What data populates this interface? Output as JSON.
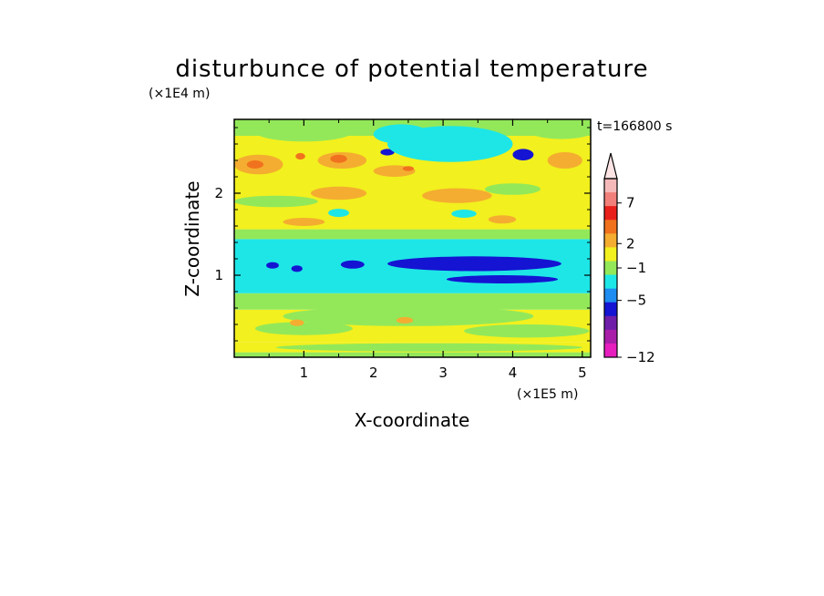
{
  "chart_data": {
    "type": "heatmap",
    "title": "disturbunce of potential temperature",
    "time_label": "t=166800 s",
    "xlabel": "X-coordinate",
    "ylabel": "Z-coordinate",
    "x_unit": "(×1E5 m)",
    "y_unit": "(×1E4 m)",
    "xlim": [
      0,
      5.12
    ],
    "ylim": [
      0,
      2.9
    ],
    "x_ticks": [
      {
        "value": 1,
        "label": "1"
      },
      {
        "value": 2,
        "label": "2"
      },
      {
        "value": 3,
        "label": "3"
      },
      {
        "value": 4,
        "label": "4"
      },
      {
        "value": 5,
        "label": "5"
      }
    ],
    "y_ticks": [
      {
        "value": 1,
        "label": "1"
      },
      {
        "value": 2,
        "label": "2"
      }
    ],
    "colorbar": {
      "min": -12,
      "max": 10,
      "extend": "max",
      "labeled_levels": [
        {
          "value": 7,
          "label": "7"
        },
        {
          "value": 2,
          "label": "2"
        },
        {
          "value": -1,
          "label": "−1"
        },
        {
          "value": -5,
          "label": "−5"
        },
        {
          "value": -12,
          "label": "−12"
        }
      ],
      "colors_top_to_bottom": [
        "#f6b9b9",
        "#f2807a",
        "#e8201c",
        "#f0721e",
        "#f4ad30",
        "#f2f01e",
        "#93e85a",
        "#1ee6e6",
        "#1e8cf0",
        "#1414d2",
        "#6e1ea8",
        "#a81ea8",
        "#e61ebe"
      ]
    },
    "bands": [
      {
        "z": [
          0.0,
          0.06
        ],
        "class": "green"
      },
      {
        "z": [
          0.06,
          0.18
        ],
        "class": "yellow"
      },
      {
        "z": [
          0.18,
          0.58
        ],
        "class": "yellow"
      },
      {
        "z": [
          0.58,
          0.78
        ],
        "class": "green"
      },
      {
        "z": [
          0.78,
          1.44
        ],
        "class": "cyan"
      },
      {
        "z": [
          1.44,
          1.56
        ],
        "class": "green"
      },
      {
        "z": [
          1.56,
          2.7
        ],
        "class": "yellow"
      },
      {
        "z": [
          2.7,
          2.9
        ],
        "class": "green"
      }
    ],
    "features": [
      {
        "class": "blue",
        "x": 3.45,
        "z": 1.14,
        "rx": 1.25,
        "rz": 0.09
      },
      {
        "class": "blue",
        "x": 3.85,
        "z": 0.95,
        "rx": 0.8,
        "rz": 0.05
      },
      {
        "class": "blue",
        "x": 1.7,
        "z": 1.13,
        "rx": 0.17,
        "rz": 0.05
      },
      {
        "class": "blue",
        "x": 0.55,
        "z": 1.12,
        "rx": 0.09,
        "rz": 0.04
      },
      {
        "class": "blue",
        "x": 0.9,
        "z": 1.08,
        "rx": 0.08,
        "rz": 0.04
      },
      {
        "class": "blue",
        "x": 3.4,
        "z": 2.55,
        "rx": 0.22,
        "rz": 0.1
      },
      {
        "class": "blue",
        "x": 2.2,
        "z": 2.5,
        "rx": 0.1,
        "rz": 0.04
      },
      {
        "class": "blue",
        "x": 4.15,
        "z": 2.47,
        "rx": 0.15,
        "rz": 0.07
      },
      {
        "class": "cyan",
        "x": 3.1,
        "z": 2.6,
        "rx": 0.9,
        "rz": 0.22
      },
      {
        "class": "cyan",
        "x": 2.4,
        "z": 2.72,
        "rx": 0.4,
        "rz": 0.12
      },
      {
        "class": "cyan",
        "x": 1.5,
        "z": 1.76,
        "rx": 0.15,
        "rz": 0.05
      },
      {
        "class": "cyan",
        "x": 3.3,
        "z": 1.75,
        "rx": 0.18,
        "rz": 0.05
      },
      {
        "class": "green",
        "x": 0.6,
        "z": 1.9,
        "rx": 0.6,
        "rz": 0.07
      },
      {
        "class": "green",
        "x": 4.0,
        "z": 2.05,
        "rx": 0.4,
        "rz": 0.07
      },
      {
        "class": "green",
        "x": 1.0,
        "z": 2.75,
        "rx": 0.7,
        "rz": 0.12
      },
      {
        "class": "green",
        "x": 4.7,
        "z": 2.78,
        "rx": 0.5,
        "rz": 0.12
      },
      {
        "class": "green",
        "x": 2.5,
        "z": 0.5,
        "rx": 1.8,
        "rz": 0.12
      },
      {
        "class": "green",
        "x": 1.0,
        "z": 0.35,
        "rx": 0.7,
        "rz": 0.08
      },
      {
        "class": "green",
        "x": 4.2,
        "z": 0.32,
        "rx": 0.9,
        "rz": 0.08
      },
      {
        "class": "green",
        "x": 2.8,
        "z": 0.12,
        "rx": 2.2,
        "rz": 0.05
      },
      {
        "class": "orange",
        "x": 0.35,
        "z": 2.35,
        "rx": 0.35,
        "rz": 0.12
      },
      {
        "class": "orange",
        "x": 1.55,
        "z": 2.4,
        "rx": 0.35,
        "rz": 0.1
      },
      {
        "class": "orange",
        "x": 2.3,
        "z": 2.27,
        "rx": 0.3,
        "rz": 0.07
      },
      {
        "class": "orange",
        "x": 4.75,
        "z": 2.4,
        "rx": 0.25,
        "rz": 0.1
      },
      {
        "class": "orange",
        "x": 3.2,
        "z": 1.97,
        "rx": 0.5,
        "rz": 0.09
      },
      {
        "class": "orange",
        "x": 1.5,
        "z": 2.0,
        "rx": 0.4,
        "rz": 0.08
      },
      {
        "class": "orange",
        "x": 3.85,
        "z": 1.68,
        "rx": 0.2,
        "rz": 0.05
      },
      {
        "class": "orange",
        "x": 1.0,
        "z": 1.65,
        "rx": 0.3,
        "rz": 0.05
      },
      {
        "class": "orange",
        "x": 0.9,
        "z": 0.42,
        "rx": 0.1,
        "rz": 0.04
      },
      {
        "class": "orange",
        "x": 2.45,
        "z": 0.45,
        "rx": 0.12,
        "rz": 0.04
      },
      {
        "class": "orangered",
        "x": 0.3,
        "z": 2.35,
        "rx": 0.12,
        "rz": 0.05
      },
      {
        "class": "orangered",
        "x": 1.5,
        "z": 2.42,
        "rx": 0.12,
        "rz": 0.05
      },
      {
        "class": "orangered",
        "x": 0.95,
        "z": 2.45,
        "rx": 0.07,
        "rz": 0.04
      },
      {
        "class": "orangered",
        "x": 2.5,
        "z": 2.3,
        "rx": 0.08,
        "rz": 0.03
      }
    ]
  }
}
